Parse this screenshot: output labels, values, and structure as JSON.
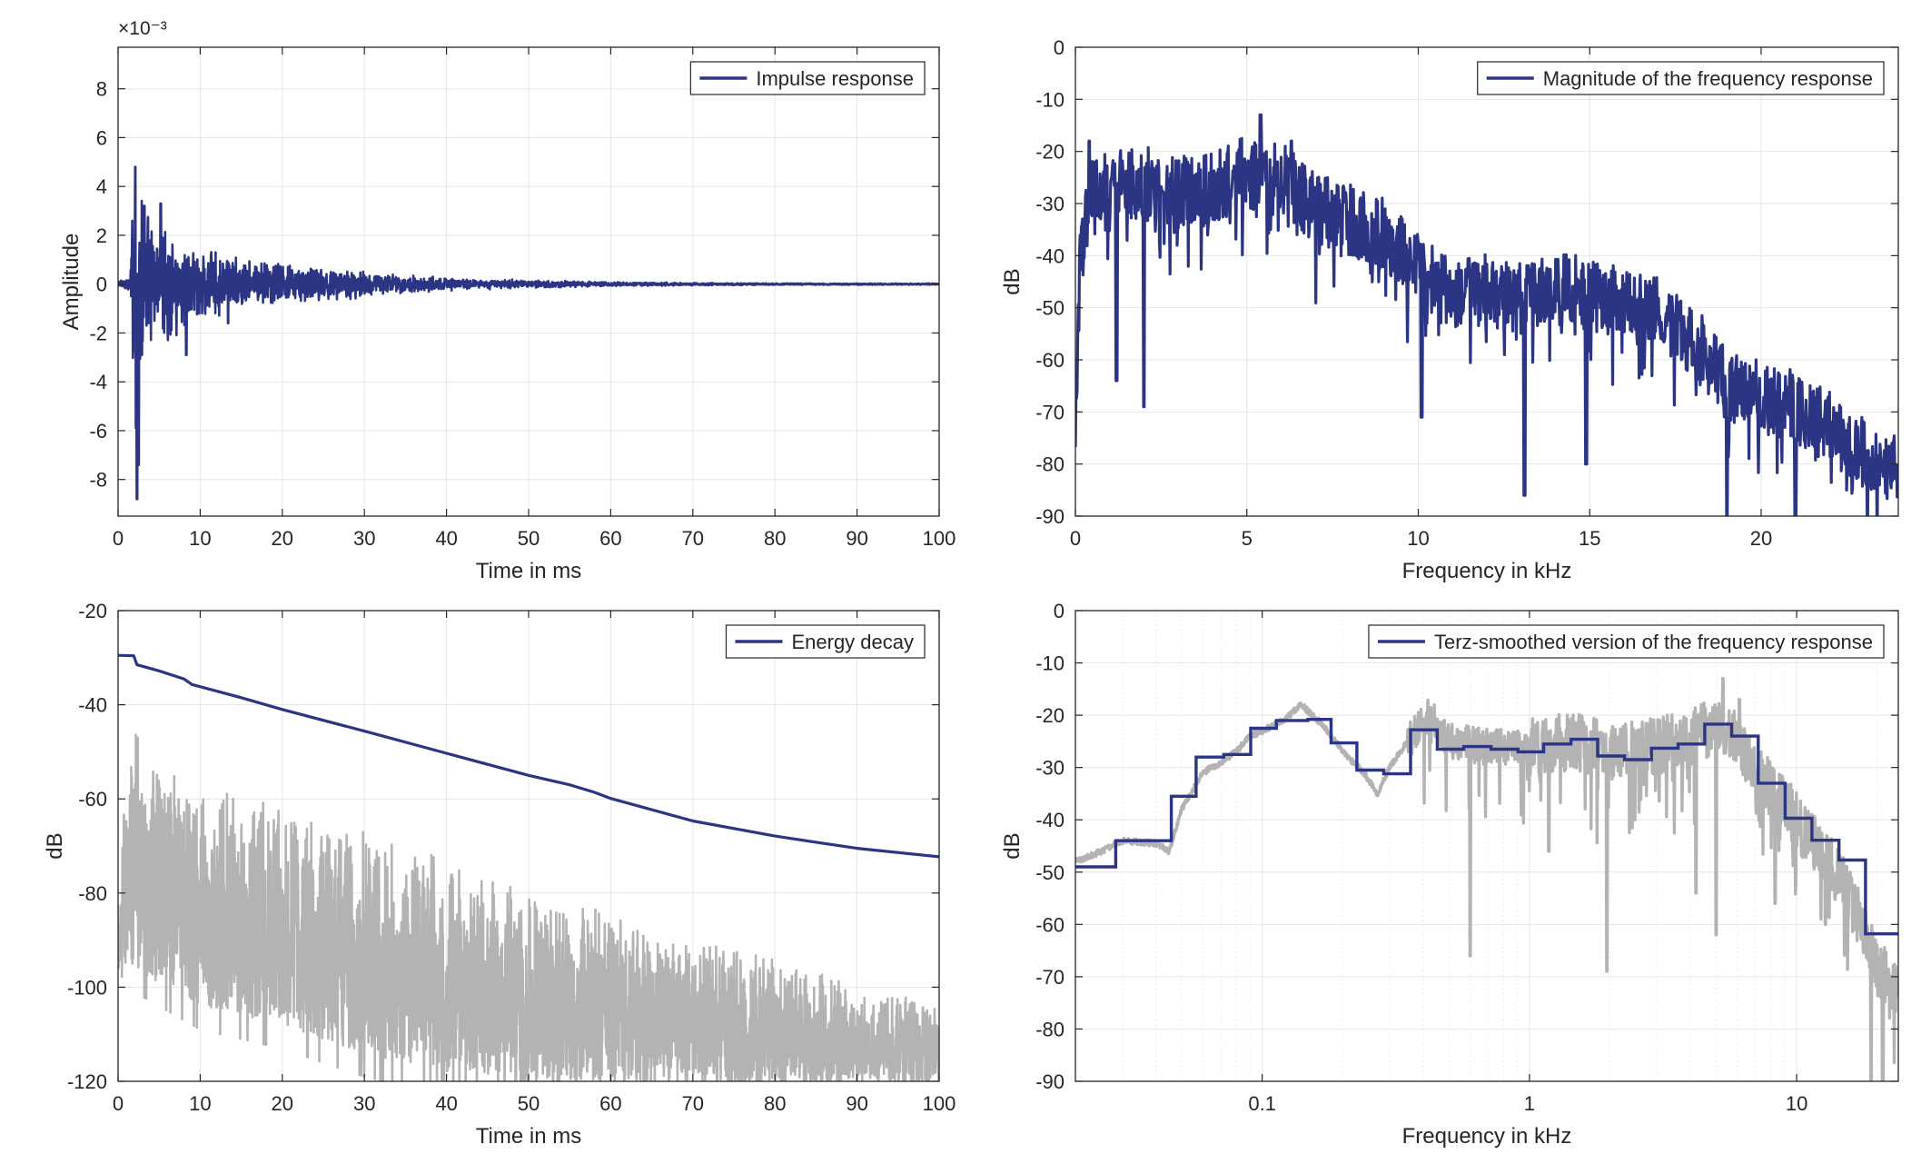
{
  "colors": {
    "primary": "#2b3584",
    "secondary": "#b3b3b3",
    "grid": "#e6e6e6",
    "minor_grid": "#ededed",
    "axis": "#262626",
    "legend_border": "#262626"
  },
  "chart_data": [
    {
      "id": "impulse",
      "type": "line",
      "title": "",
      "xlabel": "Time in ms",
      "ylabel": "Amplitude",
      "xscale": "linear",
      "xlim": [
        0,
        100
      ],
      "ylim": [
        -0.0095,
        0.0097
      ],
      "xticks": [
        0,
        10,
        20,
        30,
        40,
        50,
        60,
        70,
        80,
        90,
        100
      ],
      "xtick_labels": [
        "0",
        "10",
        "20",
        "30",
        "40",
        "50",
        "60",
        "70",
        "80",
        "90",
        "100"
      ],
      "yticks": [
        -0.008,
        -0.006,
        -0.004,
        -0.002,
        0,
        0.002,
        0.004,
        0.006,
        0.008
      ],
      "ytick_labels": [
        "-8",
        "-6",
        "-4",
        "-2",
        "0",
        "2",
        "4",
        "6",
        "8"
      ],
      "exponent_label": "×10⁻³",
      "grid": true,
      "legend": {
        "position": "top-right",
        "entries": [
          "Impulse response"
        ]
      },
      "series": [
        {
          "name": "Impulse response",
          "color": "#2b3584",
          "style": "noise",
          "envelope": [
            [
              0,
              0.0002
            ],
            [
              1.5,
              0.0004
            ],
            [
              2.1,
              0.0088
            ],
            [
              2.6,
              0.0048
            ],
            [
              4,
              0.0028
            ],
            [
              6,
              0.0025
            ],
            [
              9,
              0.0018
            ],
            [
              12,
              0.0014
            ],
            [
              15,
              0.0012
            ],
            [
              20,
              0.0009
            ],
            [
              25,
              0.0008
            ],
            [
              30,
              0.0006
            ],
            [
              35,
              0.0004
            ],
            [
              40,
              0.0003
            ],
            [
              50,
              0.00017
            ],
            [
              60,
              0.0001
            ],
            [
              70,
              6e-05
            ],
            [
              80,
              4e-05
            ],
            [
              100,
              3e-05
            ]
          ],
          "peaks": [
            [
              2.1,
              0.0048
            ],
            [
              2.3,
              -0.0088
            ],
            [
              2.5,
              -0.0074
            ],
            [
              3.2,
              0.0032
            ],
            [
              5.2,
              0.0033
            ],
            [
              8.3,
              -0.0029
            ],
            [
              13.4,
              -0.0016
            ]
          ]
        }
      ]
    },
    {
      "id": "magnitude",
      "type": "line",
      "title": "",
      "xlabel": "Frequency in kHz",
      "ylabel": "dB",
      "xscale": "linear",
      "xlim": [
        0,
        24
      ],
      "ylim": [
        -90,
        0
      ],
      "xticks": [
        0,
        5,
        10,
        15,
        20
      ],
      "xtick_labels": [
        "0",
        "5",
        "10",
        "15",
        "20"
      ],
      "yticks": [
        0,
        -10,
        -20,
        -30,
        -40,
        -50,
        -60,
        -70,
        -80,
        -90
      ],
      "ytick_labels": [
        "0",
        "-10",
        "-20",
        "-30",
        "-40",
        "-50",
        "-60",
        "-70",
        "-80",
        "-90"
      ],
      "grid": true,
      "legend": {
        "position": "top-right",
        "entries": [
          "Magnitude of the frequency response"
        ]
      },
      "series": [
        {
          "name": "Magnitude of the frequency response",
          "color": "#2b3584",
          "style": "noise",
          "trend": [
            [
              0,
              -79
            ],
            [
              0.1,
              -45
            ],
            [
              0.4,
              -28
            ],
            [
              1,
              -27
            ],
            [
              2,
              -26
            ],
            [
              3,
              -28
            ],
            [
              4,
              -27
            ],
            [
              5,
              -24
            ],
            [
              6,
              -25
            ],
            [
              7,
              -31
            ],
            [
              8,
              -33
            ],
            [
              9,
              -36
            ],
            [
              10,
              -42
            ],
            [
              11,
              -48
            ],
            [
              12,
              -46
            ],
            [
              13,
              -48
            ],
            [
              14,
              -47
            ],
            [
              15,
              -46
            ],
            [
              16,
              -50
            ],
            [
              17,
              -51
            ],
            [
              18,
              -56
            ],
            [
              19,
              -65
            ],
            [
              20,
              -67
            ],
            [
              21,
              -69
            ],
            [
              22,
              -72
            ],
            [
              23,
              -78
            ],
            [
              24,
              -82
            ]
          ],
          "dips": [
            [
              1.2,
              -64
            ],
            [
              2,
              -69
            ],
            [
              10.1,
              -71
            ],
            [
              13.1,
              -86
            ],
            [
              14.9,
              -80
            ],
            [
              19,
              -90
            ],
            [
              21,
              -90
            ],
            [
              23.1,
              -90
            ]
          ],
          "spikes": [
            [
              5.4,
              -13
            ],
            [
              6.3,
              -18
            ],
            [
              0.4,
              -18
            ]
          ]
        }
      ]
    },
    {
      "id": "energy",
      "type": "line",
      "title": "",
      "xlabel": "Time in ms",
      "ylabel": "dB",
      "xscale": "linear",
      "xlim": [
        0,
        100
      ],
      "ylim": [
        -120,
        -20
      ],
      "xticks": [
        0,
        10,
        20,
        30,
        40,
        50,
        60,
        70,
        80,
        90,
        100
      ],
      "xtick_labels": [
        "0",
        "10",
        "20",
        "30",
        "40",
        "50",
        "60",
        "70",
        "80",
        "90",
        "100"
      ],
      "yticks": [
        -20,
        -40,
        -60,
        -80,
        -100,
        -120
      ],
      "ytick_labels": [
        "-20",
        "-40",
        "-60",
        "-80",
        "-100",
        "-120"
      ],
      "grid": true,
      "legend": {
        "position": "top-right",
        "entries": [
          "Energy decay"
        ]
      },
      "series": [
        {
          "name": "Energy decay",
          "color": "#2b3584",
          "style": "line",
          "points": [
            [
              0,
              -29.5
            ],
            [
              1.9,
              -29.6
            ],
            [
              2.3,
              -31.5
            ],
            [
              5,
              -32.8
            ],
            [
              8,
              -34.5
            ],
            [
              9,
              -35.7
            ],
            [
              15,
              -38.5
            ],
            [
              20,
              -41
            ],
            [
              30,
              -45.6
            ],
            [
              40,
              -50.3
            ],
            [
              50,
              -55
            ],
            [
              55,
              -57
            ],
            [
              58,
              -58.6
            ],
            [
              60,
              -59.9
            ],
            [
              70,
              -64.7
            ],
            [
              80,
              -67.9
            ],
            [
              90,
              -70.5
            ],
            [
              100,
              -72.3
            ]
          ]
        },
        {
          "name": "",
          "color": "#b3b3b3",
          "style": "noise",
          "envelope_top": [
            [
              0,
              -72
            ],
            [
              2,
              -42
            ],
            [
              4,
              -52
            ],
            [
              10,
              -56
            ],
            [
              20,
              -62
            ],
            [
              30,
              -66
            ],
            [
              40,
              -73
            ],
            [
              50,
              -80
            ],
            [
              60,
              -84
            ],
            [
              70,
              -90
            ],
            [
              80,
              -93
            ],
            [
              90,
              -100
            ],
            [
              100,
              -103
            ]
          ],
          "envelope_bottom": [
            [
              0,
              -100
            ],
            [
              2,
              -96
            ],
            [
              10,
              -104
            ],
            [
              20,
              -108
            ],
            [
              30,
              -114
            ],
            [
              40,
              -118
            ],
            [
              60,
              -120
            ],
            [
              100,
              -120
            ]
          ]
        }
      ]
    },
    {
      "id": "terz",
      "type": "line",
      "title": "",
      "xlabel": "Frequency in kHz",
      "ylabel": "dB",
      "xscale": "log",
      "xlim": [
        0.02,
        24
      ],
      "ylim": [
        -90,
        0
      ],
      "xticks": [
        0.1,
        1,
        10
      ],
      "xtick_labels": [
        "0.1",
        "1",
        "10"
      ],
      "yticks": [
        0,
        -10,
        -20,
        -30,
        -40,
        -50,
        -60,
        -70,
        -80,
        -90
      ],
      "ytick_labels": [
        "0",
        "-10",
        "-20",
        "-30",
        "-40",
        "-50",
        "-60",
        "-70",
        "-80",
        "-90"
      ],
      "grid": true,
      "legend": {
        "position": "top-right",
        "entries": [
          "Terz-smoothed version of the frequency response"
        ]
      },
      "series": [
        {
          "name": "Terz-smoothed version of the frequency response",
          "color": "#2b3584",
          "style": "step",
          "steps": [
            [
              0.02,
              -49
            ],
            [
              0.0283,
              -44
            ],
            [
              0.0457,
              -35.5
            ],
            [
              0.0566,
              -28
            ],
            [
              0.0718,
              -27.5
            ],
            [
              0.0906,
              -22.5
            ],
            [
              0.113,
              -21
            ],
            [
              0.148,
              -20.8
            ],
            [
              0.181,
              -25.3
            ],
            [
              0.226,
              -30.5
            ],
            [
              0.285,
              -31.2
            ],
            [
              0.359,
              -22.8
            ],
            [
              0.452,
              -26.5
            ],
            [
              0.568,
              -26
            ],
            [
              0.718,
              -26.5
            ],
            [
              0.906,
              -27
            ],
            [
              1.13,
              -25.5
            ],
            [
              1.43,
              -24.6
            ],
            [
              1.8,
              -27.8
            ],
            [
              2.27,
              -28.5
            ],
            [
              2.86,
              -26.3
            ],
            [
              3.6,
              -25.5
            ],
            [
              4.53,
              -21.7
            ],
            [
              5.71,
              -24
            ],
            [
              7.18,
              -33
            ],
            [
              9.05,
              -39.7
            ],
            [
              11.4,
              -43.9
            ],
            [
              14.4,
              -47.7
            ],
            [
              18.1,
              -61.8
            ],
            [
              24,
              -61.8
            ]
          ]
        },
        {
          "name": "",
          "color": "#b3b3b3",
          "style": "noise_log",
          "trend": [
            [
              0.02,
              -48
            ],
            [
              0.025,
              -46
            ],
            [
              0.03,
              -44
            ],
            [
              0.04,
              -44.5
            ],
            [
              0.045,
              -46
            ],
            [
              0.05,
              -38
            ],
            [
              0.06,
              -31
            ],
            [
              0.07,
              -29
            ],
            [
              0.08,
              -27
            ],
            [
              0.09,
              -24
            ],
            [
              0.1,
              -23
            ],
            [
              0.12,
              -21
            ],
            [
              0.14,
              -18
            ],
            [
              0.17,
              -22
            ],
            [
              0.2,
              -27
            ],
            [
              0.24,
              -31
            ],
            [
              0.27,
              -35
            ],
            [
              0.3,
              -30
            ],
            [
              0.35,
              -25
            ],
            [
              0.42,
              -20
            ],
            [
              0.5,
              -25
            ],
            [
              0.7,
              -26
            ],
            [
              1,
              -26
            ],
            [
              1.5,
              -25
            ],
            [
              2,
              -27
            ],
            [
              3,
              -26
            ],
            [
              4,
              -24
            ],
            [
              5,
              -22
            ],
            [
              6,
              -25
            ],
            [
              7,
              -31
            ],
            [
              9,
              -37
            ],
            [
              11,
              -43
            ],
            [
              14,
              -50
            ],
            [
              17,
              -58
            ],
            [
              20,
              -68
            ],
            [
              24,
              -72
            ]
          ],
          "dips": [
            [
              0.6,
              -66
            ],
            [
              1.18,
              -46
            ],
            [
              1.95,
              -69
            ],
            [
              4.2,
              -54
            ],
            [
              5.0,
              -62
            ],
            [
              8.3,
              -56
            ],
            [
              12.8,
              -60
            ],
            [
              19,
              -90
            ],
            [
              21,
              -90
            ]
          ],
          "spikes": [
            [
              5.3,
              -13
            ],
            [
              6.1,
              -17
            ]
          ]
        }
      ]
    }
  ]
}
